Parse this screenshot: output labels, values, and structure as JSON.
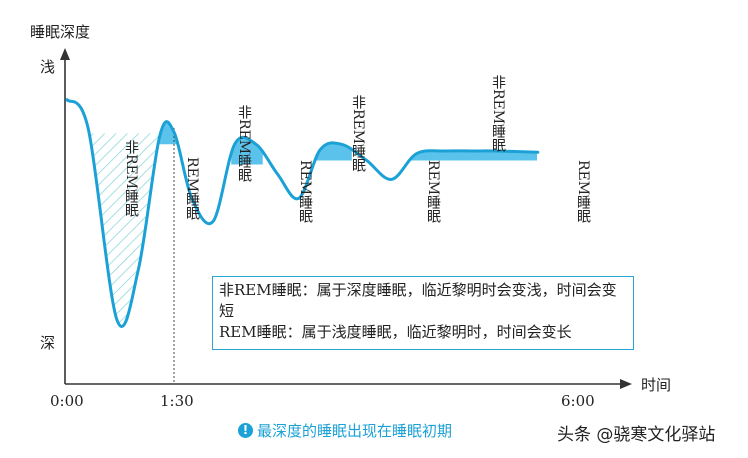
{
  "chart_data": {
    "type": "line",
    "ylabel": "睡眠深度",
    "y_top_label": "浅",
    "y_bottom_label": "深",
    "xlabel": "时间",
    "x_ticks": [
      "0:00",
      "1:30",
      "6:00"
    ],
    "stage_labels": {
      "non_rem": "非REM睡眠",
      "rem": "REM睡眠"
    },
    "series": [
      {
        "name": "",
        "x": [
          0.0,
          0.3,
          0.7,
          1.0,
          1.3,
          1.5,
          1.75,
          2.05,
          2.35,
          2.65,
          2.95,
          3.25,
          3.55,
          3.85,
          4.2,
          4.55,
          4.9,
          5.3,
          5.7,
          6.0,
          6.6
        ],
        "y": [
          0.78,
          0.56,
          -0.85,
          -0.48,
          0.51,
          0.54,
          0.05,
          -0.12,
          0.45,
          0.45,
          0.23,
          0.05,
          0.41,
          0.45,
          0.33,
          0.19,
          0.38,
          0.4,
          0.4,
          0.4,
          0.39
        ],
        "unit": "relative depth (1 = shallow, -1 = deep)"
      }
    ],
    "legend_lines": [
      "非REM睡眠：属于深度睡眠，临近黎明时会变浅，时间会变短",
      "REM睡眠：属于浅度睡眠，临近黎明时，时间会变长"
    ],
    "caption": "最深度的睡眠出现在睡眠初期",
    "watermark": "头条 @骁寒文化驿站",
    "colors": {
      "curve": "#1ba1d6",
      "rem_fill": "#5bc3eb",
      "axis": "#333333",
      "hatch": "#7fd0d8"
    }
  }
}
